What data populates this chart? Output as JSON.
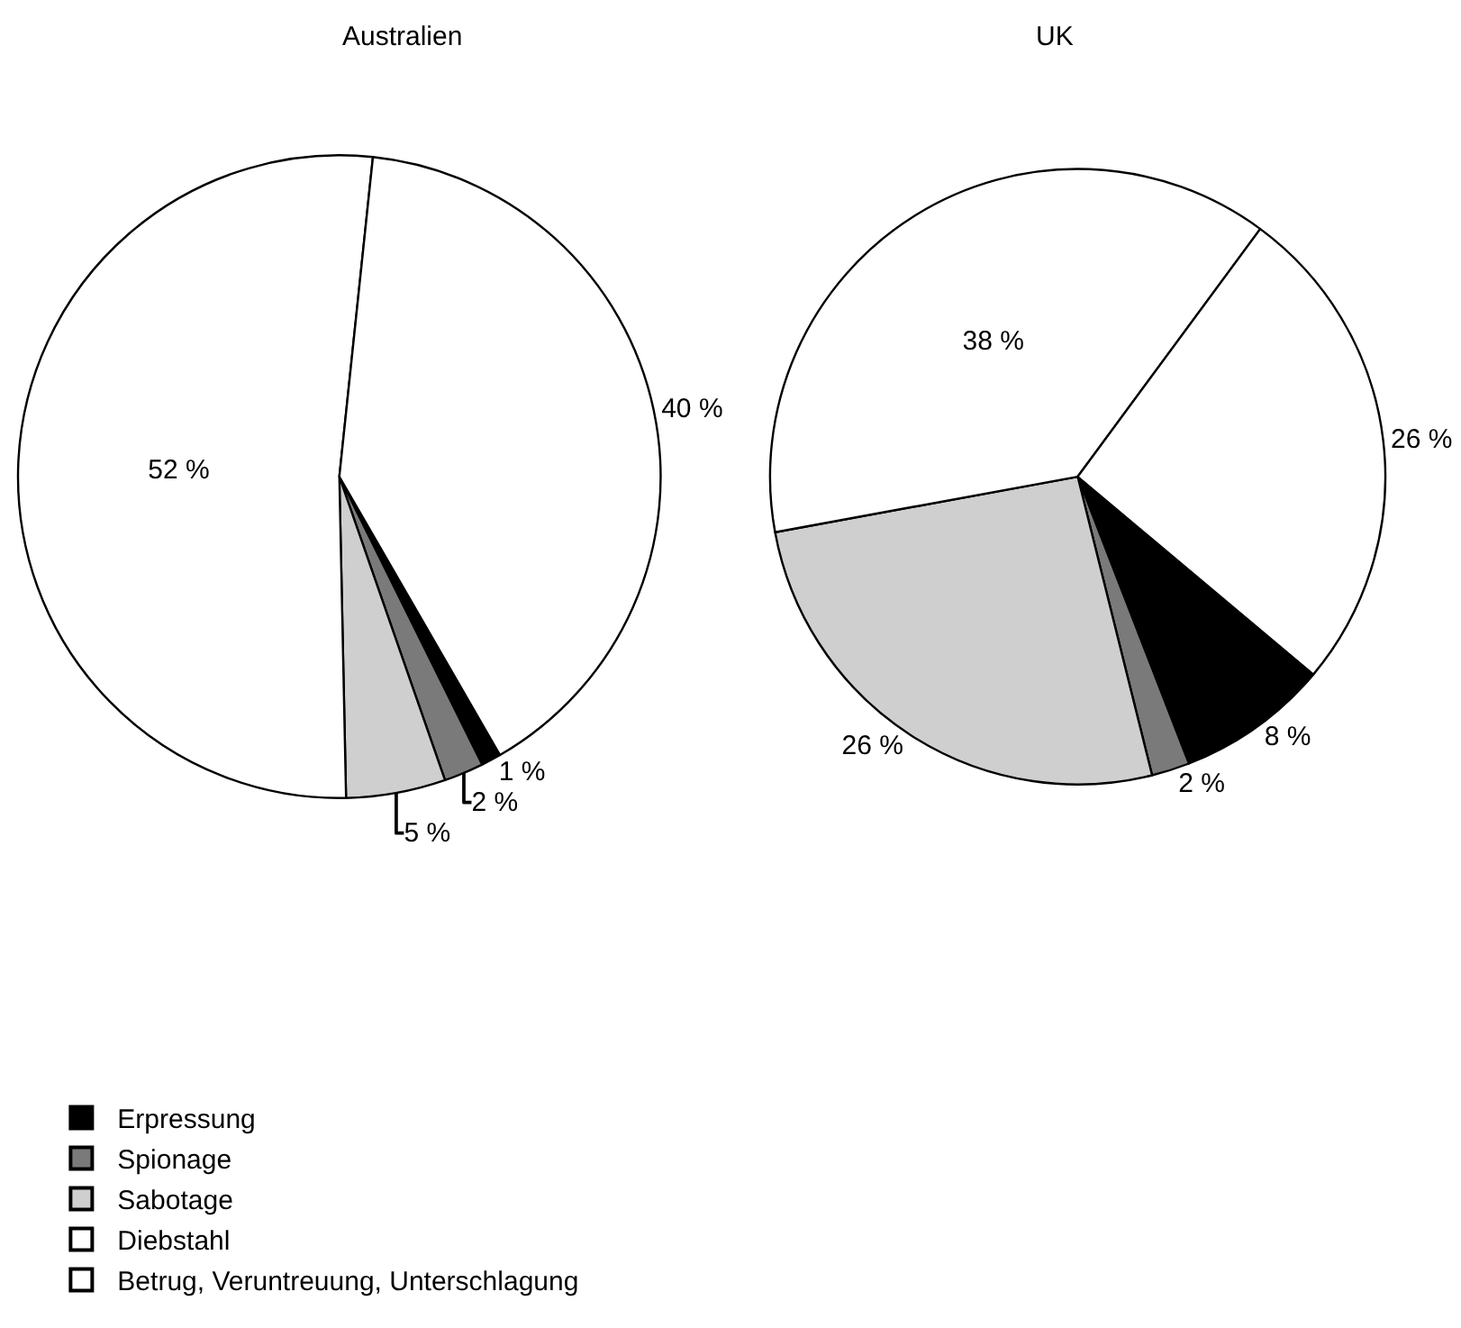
{
  "chart_data": {
    "type": "pie",
    "categories": [
      "Erpressung",
      "Spionage",
      "Sabotage",
      "Diebstahl",
      "Betrug, Veruntreuung, Unterschlagung"
    ],
    "colors": [
      "#000000",
      "#7a7a7a",
      "#cfcfcf",
      "#ffffff",
      "#ffffff"
    ],
    "legend": "bottom left",
    "series": [
      {
        "name": "Australien",
        "values": [
          1,
          2,
          5,
          52,
          40
        ],
        "value_labels": [
          "1 %",
          "2 %",
          "5 %",
          "52 %",
          "40 %"
        ]
      },
      {
        "name": "UK",
        "values": [
          8,
          2,
          26,
          38,
          26
        ],
        "value_labels": [
          "8 %",
          "2 %",
          "26 %",
          "38 %",
          "26 %"
        ]
      }
    ]
  }
}
